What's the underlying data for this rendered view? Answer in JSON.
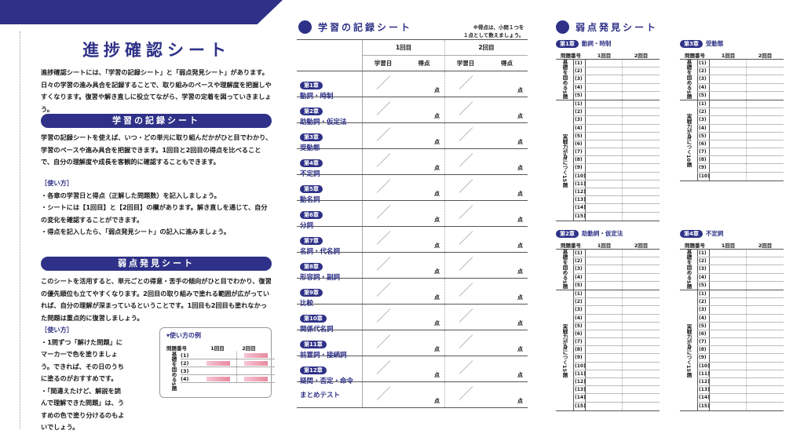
{
  "left": {
    "title": "進捗確認シート",
    "intro": "進捗確認シートには、「学習の記録シート」と「弱点発見シート」があります。日々の学習の進み具合を記録することで、取り組みのペースや理解度を把握しやすくなります。復習や解き直しに役立てながら、学習の定着を図っていきましょう。",
    "record": {
      "heading": "学習の記録シート",
      "body": "学習の記録シートを使えば、いつ・どの単元に取り組んだかがひと目でわかり、学習のペースや進み具合を把握できます。1回目と2回目の得点を比べることで、自分の理解度や成長を客観的に確認することもできます。",
      "howto_label": "［使い方］",
      "bullets": [
        "・各章の学習日と得点（正解した問題数）を記入しましょう。",
        "・シートには【1回目】と【2回目】の欄があります。解き直しを通じて、自分の変化を確認することができます。",
        "・得点を記入したら、「弱点発見シート」の記入に進みましょう。"
      ]
    },
    "weak": {
      "heading": "弱点発見シート",
      "body": "このシートを活用すると、単元ごとの得意・苦手の傾向がひと目でわかり、復習の優先順位も立てやすくなります。2回目の取り組みで塗れる範囲が広がっていれば、自分の理解が深まっているということです。1回目も2回目も塗れなかった問題は重点的に復習しましょう。",
      "howto_label": "［使い方］",
      "bullets": [
        "・1問ずつ「解けた問題」にマーカーで色を塗りましょう。できれば、その日のうちに塗るのがおすすめです。",
        "・「間違えたけど、解説を読んで理解できた問題」は、うすめの色で塗り分けるのもよいでしょう。"
      ],
      "example": {
        "title": "▾使い方の例",
        "col_q": "問題番号",
        "col_1": "1回目",
        "col_2": "2回目",
        "group": "基礎を固める5題",
        "rows": [
          {
            "n": "(1)",
            "a": false,
            "b": true
          },
          {
            "n": "(2)",
            "a": true,
            "b": true
          },
          {
            "n": "(3)",
            "a": false,
            "b": false
          },
          {
            "n": "(4)",
            "a": true,
            "b": true
          }
        ]
      }
    }
  },
  "record_sheet": {
    "title": "学習の記録シート",
    "note_line1": "※得点は、小問１つを",
    "note_line2": "１点として数えましょう。",
    "round1": "1回目",
    "round2": "2回目",
    "col_date": "学習日",
    "col_score": "得点",
    "point_unit": "点",
    "chapters": [
      {
        "badge": "第1章",
        "name": "動詞・時制"
      },
      {
        "badge": "第2章",
        "name": "助動詞・仮定法"
      },
      {
        "badge": "第3章",
        "name": "受動態"
      },
      {
        "badge": "第4章",
        "name": "不定詞"
      },
      {
        "badge": "第5章",
        "name": "動名詞"
      },
      {
        "badge": "第6章",
        "name": "分詞"
      },
      {
        "badge": "第7章",
        "name": "名詞・代名詞"
      },
      {
        "badge": "第8章",
        "name": "形容詞・副詞"
      },
      {
        "badge": "第9章",
        "name": "比較"
      },
      {
        "badge": "第10章",
        "name": "関係代名詞"
      },
      {
        "badge": "第11章",
        "name": "前置詞・接続詞"
      },
      {
        "badge": "第12章",
        "name": "疑問・否定・命令"
      },
      {
        "badge": "",
        "name": "まとめテスト"
      }
    ]
  },
  "weak_sheet": {
    "title": "弱点発見シート",
    "col_q": "問題番号",
    "col_1": "1回目",
    "col_2": "2回目",
    "blocks": [
      {
        "badge": "第1章",
        "name": "動詞・時制",
        "groups": [
          {
            "label": "基礎を固める5題",
            "count": 5
          },
          {
            "label": "実戦力が身につく15題",
            "count": 15
          }
        ]
      },
      {
        "badge": "第3章",
        "name": "受動態",
        "groups": [
          {
            "label": "基礎を固める5題",
            "count": 5
          },
          {
            "label": "実戦力が身につく10題",
            "count": 10
          }
        ]
      },
      {
        "badge": "第2章",
        "name": "助動詞・仮定法",
        "groups": [
          {
            "label": "基礎を固める5題",
            "count": 5
          },
          {
            "label": "実戦力が身につく15題",
            "count": 15
          }
        ]
      },
      {
        "badge": "第4章",
        "name": "不定詞",
        "groups": [
          {
            "label": "基礎を固める5題",
            "count": 5
          },
          {
            "label": "実戦力が身につく15題",
            "count": 15
          }
        ]
      }
    ]
  },
  "colors": {
    "navy": "#2e3187",
    "marker": "#e9899f"
  }
}
